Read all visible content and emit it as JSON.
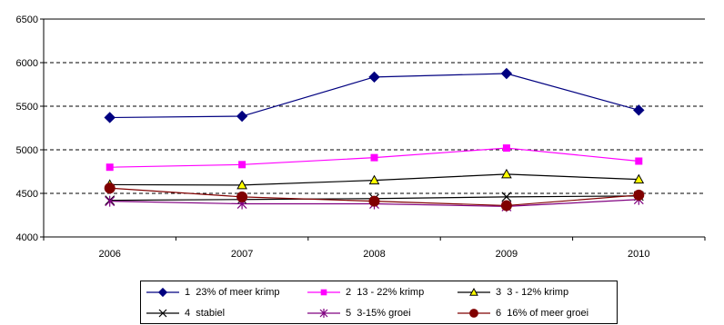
{
  "chart_data": {
    "type": "line",
    "categories": [
      "2006",
      "2007",
      "2008",
      "2009",
      "2010"
    ],
    "ylim": [
      4000,
      6500
    ],
    "yticks": [
      4000,
      4500,
      5000,
      5500,
      6000,
      6500
    ],
    "ytick_labels": [
      "4000",
      "4500",
      "5000",
      "5500",
      "6000",
      "6500"
    ],
    "grid": "horizontal dashed",
    "legend_position": "bottom",
    "series": [
      {
        "name": "1  23% of meer krimp",
        "values": [
          5370,
          5385,
          5835,
          5875,
          5455
        ],
        "color": "#000080",
        "marker": "diamond"
      },
      {
        "name": "2  13 - 22% krimp",
        "values": [
          4800,
          4830,
          4910,
          5020,
          4870
        ],
        "color": "#ff00ff",
        "marker": "square"
      },
      {
        "name": "3  3 - 12% krimp",
        "values": [
          4600,
          4595,
          4650,
          4720,
          4660
        ],
        "color": "#000000",
        "marker": "triangle"
      },
      {
        "name": "4  stabiel",
        "values": [
          4420,
          4430,
          4440,
          4460,
          4470
        ],
        "color": "#000000",
        "marker": "x"
      },
      {
        "name": "5  3-15% groei",
        "values": [
          4410,
          4380,
          4380,
          4350,
          4430
        ],
        "color": "#800080",
        "marker": "star"
      },
      {
        "name": "6  16% of meer groei",
        "values": [
          4560,
          4460,
          4410,
          4360,
          4480
        ],
        "color": "#800000",
        "marker": "circle"
      }
    ]
  }
}
